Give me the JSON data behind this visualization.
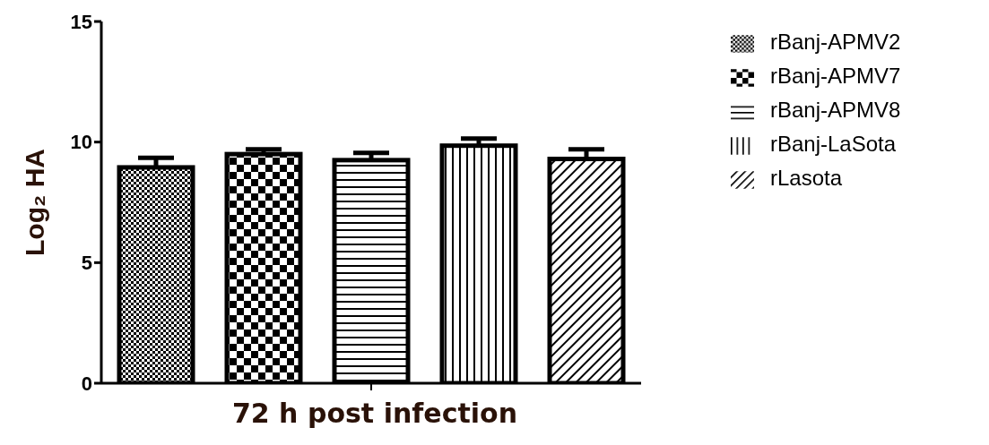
{
  "chart_data": {
    "type": "bar",
    "xlabel": "72 h post infection",
    "ylabel": "Log₂ HA",
    "categories": [
      null
    ],
    "series": [
      {
        "name": "rBanj-APMV2",
        "color": "#000000",
        "values": [
          8.95
        ],
        "errors": [
          [
            8.95,
            9.35
          ]
        ]
      },
      {
        "name": "rBanj-APMV7",
        "color": "#000000",
        "values": [
          9.5
        ],
        "errors": [
          [
            9.5,
            9.7
          ]
        ]
      },
      {
        "name": "rBanj-APMV8",
        "color": "#000000",
        "values": [
          9.25
        ],
        "errors": [
          [
            9.25,
            9.55
          ]
        ]
      },
      {
        "name": "rBanj-LaSota",
        "color": "#000000",
        "values": [
          9.85
        ],
        "errors": [
          [
            9.85,
            10.15
          ]
        ]
      },
      {
        "name": "rLasota",
        "color": "#000000",
        "values": [
          9.3
        ],
        "errors": [
          [
            9.3,
            9.7
          ]
        ]
      }
    ],
    "ylim": [
      0,
      15
    ],
    "yticks": [
      0,
      5,
      10,
      15
    ],
    "grid": false,
    "legend": "right"
  }
}
